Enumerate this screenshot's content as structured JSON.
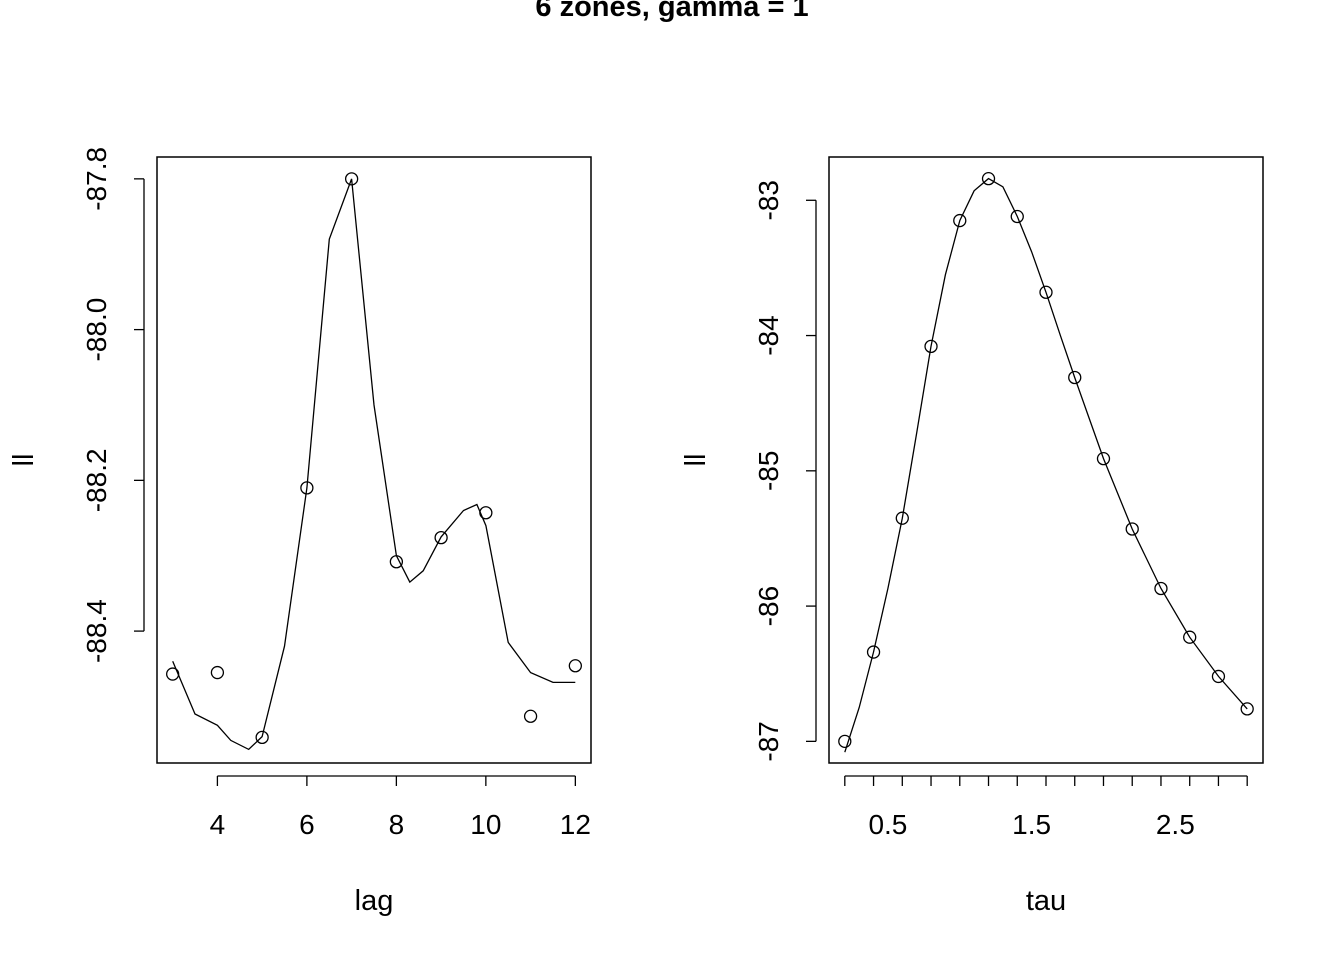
{
  "figure": {
    "title": "6 zones, gamma = 1"
  },
  "chart_data": [
    {
      "type": "scatter",
      "xlabel": "lag",
      "ylabel": "ll",
      "xlim": [
        2.65,
        12.35
      ],
      "ylim": [
        -88.575,
        -87.771
      ],
      "x_ticks": [
        4,
        6,
        8,
        10,
        12
      ],
      "y_ticks": [
        -87.8,
        -88.0,
        -88.2,
        -88.4
      ],
      "x_tick_labels": [
        "4",
        "6",
        "8",
        "10",
        "12"
      ],
      "y_tick_labels": [
        "-87.8",
        "-88.0",
        "-88.2",
        "-88.4"
      ],
      "points": {
        "x": [
          3,
          4,
          5,
          6,
          7,
          8,
          9,
          10,
          11,
          12
        ],
        "y": [
          -88.457,
          -88.455,
          -88.541,
          -88.21,
          -87.8,
          -88.308,
          -88.276,
          -88.243,
          -88.513,
          -88.446
        ]
      },
      "smooth": {
        "x": [
          3,
          3.5,
          4,
          4.3,
          4.7,
          5,
          5.5,
          6,
          6.5,
          7,
          7.5,
          8,
          8.3,
          8.6,
          9,
          9.5,
          9.8,
          10,
          10.5,
          11,
          11.5,
          12
        ],
        "y": [
          -88.44,
          -88.51,
          -88.525,
          -88.545,
          -88.557,
          -88.54,
          -88.42,
          -88.21,
          -87.88,
          -87.8,
          -88.1,
          -88.3,
          -88.335,
          -88.32,
          -88.275,
          -88.24,
          -88.232,
          -88.26,
          -88.415,
          -88.455,
          -88.468,
          -88.468
        ]
      },
      "grid": false,
      "legend": "none"
    },
    {
      "type": "scatter",
      "xlabel": "tau",
      "ylabel": "ll",
      "xlim": [
        0.09,
        3.11
      ],
      "ylim": [
        -87.16,
        -82.68
      ],
      "x_ticks": [
        0.2,
        0.4,
        0.6,
        0.8,
        1.0,
        1.2,
        1.4,
        1.6,
        1.8,
        2.0,
        2.2,
        2.4,
        2.6,
        2.8,
        3.0
      ],
      "x_tick_labels_at": [
        0.5,
        1.5,
        2.5
      ],
      "x_tick_labels": [
        "0.5",
        "1.5",
        "2.5"
      ],
      "y_ticks": [
        -83,
        -84,
        -85,
        -86,
        -87
      ],
      "y_tick_labels": [
        "-83",
        "-84",
        "-85",
        "-86",
        "-87"
      ],
      "points": {
        "x": [
          0.2,
          0.4,
          0.6,
          0.8,
          1.0,
          1.2,
          1.4,
          1.6,
          1.8,
          2.0,
          2.2,
          2.4,
          2.6,
          2.8,
          3.0
        ],
        "y": [
          -87.0,
          -86.34,
          -85.35,
          -84.08,
          -83.15,
          -82.84,
          -83.12,
          -83.68,
          -84.31,
          -84.91,
          -85.43,
          -85.87,
          -86.23,
          -86.52,
          -86.76
        ]
      },
      "smooth": {
        "x": [
          0.2,
          0.3,
          0.4,
          0.5,
          0.6,
          0.7,
          0.8,
          0.9,
          1.0,
          1.1,
          1.2,
          1.3,
          1.4,
          1.5,
          1.6,
          1.7,
          1.8,
          1.9,
          2.0,
          2.2,
          2.4,
          2.6,
          2.8,
          3.0
        ],
        "y": [
          -87.08,
          -86.75,
          -86.34,
          -85.87,
          -85.35,
          -84.72,
          -84.08,
          -83.55,
          -83.15,
          -82.93,
          -82.84,
          -82.9,
          -83.12,
          -83.38,
          -83.68,
          -84.0,
          -84.31,
          -84.61,
          -84.91,
          -85.43,
          -85.87,
          -86.23,
          -86.52,
          -86.76
        ]
      },
      "grid": false,
      "legend": "none"
    }
  ]
}
